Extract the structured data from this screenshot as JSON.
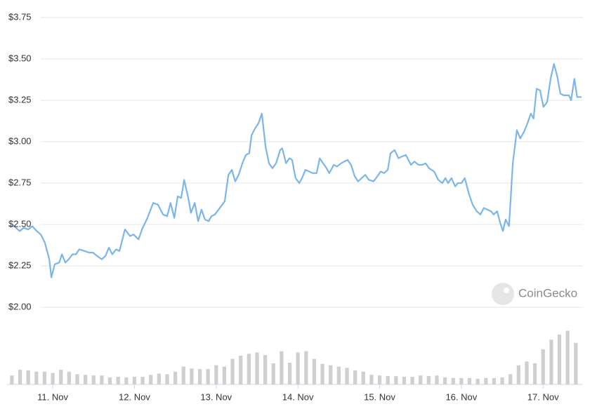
{
  "chart_data": {
    "type": "line",
    "watermark": "CoinGecko",
    "xlim": [
      -12.6,
      155.3
    ],
    "xticks": [
      {
        "value": 0,
        "label": "11. Nov"
      },
      {
        "value": 24,
        "label": "12. Nov"
      },
      {
        "value": 48,
        "label": "13. Nov"
      },
      {
        "value": 72,
        "label": "14. Nov"
      },
      {
        "value": 96,
        "label": "15. Nov"
      },
      {
        "value": 120,
        "label": "16. Nov"
      },
      {
        "value": 144,
        "label": "17. Nov"
      }
    ],
    "ylim": [
      2.0,
      3.75
    ],
    "yticks": [
      {
        "value": 2.0,
        "label": "$2.00"
      },
      {
        "value": 2.25,
        "label": "$2.25"
      },
      {
        "value": 2.5,
        "label": "$2.50"
      },
      {
        "value": 2.75,
        "label": "$2.75"
      },
      {
        "value": 3.0,
        "label": "$3.00"
      },
      {
        "value": 3.25,
        "label": "$3.25"
      },
      {
        "value": 3.5,
        "label": "$3.50"
      },
      {
        "value": 3.75,
        "label": "$3.75"
      }
    ],
    "y2lim": [
      0,
      90
    ],
    "grid": true,
    "series": [
      {
        "type": "line",
        "color": "#7cb5ec",
        "x": [
          -12.6,
          -11.3,
          -9.7,
          -8.5,
          -7.2,
          -6.0,
          -4.7,
          -3.5,
          -2.3,
          -1.0,
          -0.4,
          0.6,
          1.9,
          2.7,
          3.7,
          4.7,
          5.8,
          6.8,
          7.8,
          9.3,
          10.7,
          11.8,
          13.0,
          14.4,
          15.5,
          16.5,
          17.5,
          18.6,
          19.6,
          21.2,
          22.7,
          23.7,
          25.2,
          26.2,
          27.8,
          29.5,
          30.9,
          32.4,
          33.6,
          34.6,
          35.7,
          36.7,
          37.7,
          38.6,
          39.8,
          40.6,
          41.7,
          42.7,
          43.7,
          44.7,
          45.8,
          46.6,
          47.6,
          48.7,
          50.5,
          51.6,
          52.6,
          53.6,
          54.6,
          55.7,
          56.7,
          57.7,
          58.4,
          59.4,
          60.4,
          61.4,
          62.5,
          63.5,
          64.5,
          65.6,
          66.8,
          67.4,
          68.5,
          69.5,
          70.3,
          71.3,
          72.4,
          73.2,
          74.2,
          75.3,
          76.3,
          77.5,
          78.4,
          79.4,
          80.4,
          81.2,
          82.5,
          83.5,
          84.7,
          85.6,
          86.6,
          87.6,
          88.7,
          89.7,
          90.7,
          91.8,
          92.8,
          94.2,
          95.3,
          96.3,
          97.3,
          98.4,
          99.2,
          100.4,
          101.5,
          102.5,
          103.7,
          105.2,
          106.2,
          107.4,
          108.5,
          109.5,
          110.5,
          112.0,
          113.2,
          114.4,
          115.3,
          116.1,
          117.1,
          118.2,
          119.0,
          120.0,
          121.0,
          122.3,
          123.3,
          124.5,
          125.6,
          126.6,
          127.6,
          128.7,
          129.5,
          130.5,
          131.4,
          132.2,
          133.0,
          134.0,
          135.1,
          136.3,
          137.3,
          138.4,
          139.4,
          140.4,
          141.2,
          142.1,
          143.1,
          144.1,
          145.2,
          146.2,
          147.2,
          148.1,
          149.1,
          150.1,
          151.6,
          152.2,
          153.2,
          154.0,
          155.3
        ],
        "values": [
          2.49,
          2.49,
          2.46,
          2.48,
          2.47,
          2.49,
          2.46,
          2.44,
          2.39,
          2.29,
          2.18,
          2.26,
          2.27,
          2.32,
          2.27,
          2.29,
          2.32,
          2.32,
          2.35,
          2.34,
          2.33,
          2.33,
          2.31,
          2.29,
          2.31,
          2.36,
          2.32,
          2.35,
          2.34,
          2.47,
          2.43,
          2.44,
          2.41,
          2.47,
          2.54,
          2.63,
          2.62,
          2.56,
          2.55,
          2.63,
          2.54,
          2.67,
          2.66,
          2.77,
          2.66,
          2.57,
          2.63,
          2.52,
          2.59,
          2.53,
          2.52,
          2.55,
          2.56,
          2.59,
          2.64,
          2.8,
          2.83,
          2.76,
          2.8,
          2.87,
          2.92,
          2.93,
          3.04,
          3.08,
          3.11,
          3.17,
          2.97,
          2.87,
          2.84,
          2.87,
          2.95,
          2.96,
          2.87,
          2.9,
          2.89,
          2.78,
          2.75,
          2.78,
          2.83,
          2.82,
          2.81,
          2.81,
          2.9,
          2.87,
          2.84,
          2.81,
          2.86,
          2.85,
          2.87,
          2.88,
          2.89,
          2.86,
          2.79,
          2.76,
          2.78,
          2.8,
          2.77,
          2.76,
          2.79,
          2.82,
          2.81,
          2.83,
          2.93,
          2.95,
          2.9,
          2.91,
          2.92,
          2.86,
          2.88,
          2.86,
          2.86,
          2.87,
          2.84,
          2.82,
          2.77,
          2.75,
          2.78,
          2.75,
          2.78,
          2.73,
          2.75,
          2.75,
          2.78,
          2.68,
          2.62,
          2.58,
          2.56,
          2.6,
          2.59,
          2.58,
          2.56,
          2.58,
          2.51,
          2.46,
          2.53,
          2.49,
          2.87,
          3.07,
          3.02,
          3.06,
          3.11,
          3.17,
          3.14,
          3.32,
          3.31,
          3.21,
          3.24,
          3.38,
          3.47,
          3.4,
          3.29,
          3.28,
          3.28,
          3.25,
          3.38,
          3.27,
          3.27
        ]
      },
      {
        "type": "bar",
        "axis": "y2",
        "color": "#cfcfcf",
        "x": [
          -12.0,
          -9.6,
          -7.2,
          -4.8,
          -2.4,
          0.0,
          2.4,
          4.8,
          7.2,
          9.6,
          12.0,
          14.4,
          16.8,
          19.2,
          21.6,
          24.0,
          26.4,
          28.8,
          31.2,
          33.6,
          36.0,
          38.4,
          40.8,
          43.2,
          45.6,
          48.0,
          50.4,
          52.8,
          55.2,
          57.6,
          60.0,
          62.4,
          64.8,
          67.2,
          69.6,
          72.0,
          74.4,
          76.8,
          79.2,
          81.6,
          84.0,
          86.4,
          88.8,
          91.2,
          93.6,
          96.0,
          98.4,
          100.8,
          103.2,
          105.6,
          108.0,
          110.4,
          112.8,
          115.2,
          117.6,
          120.0,
          122.4,
          124.8,
          127.2,
          129.6,
          132.0,
          134.4,
          136.8,
          139.2,
          141.6,
          144.0,
          146.4,
          148.8,
          151.2,
          153.6
        ],
        "values": [
          14,
          23,
          22,
          20,
          20,
          18,
          23,
          20,
          16,
          15,
          14,
          14,
          11,
          12,
          11,
          12,
          12,
          15,
          17,
          16,
          20,
          28,
          25,
          24,
          24,
          30,
          28,
          40,
          45,
          48,
          50,
          46,
          33,
          52,
          34,
          50,
          52,
          40,
          32,
          30,
          28,
          26,
          22,
          20,
          15,
          14,
          13,
          13,
          12,
          12,
          14,
          13,
          14,
          11,
          10,
          10,
          10,
          9,
          10,
          10,
          11,
          16,
          30,
          36,
          33,
          55,
          70,
          78,
          84,
          65
        ]
      }
    ]
  }
}
